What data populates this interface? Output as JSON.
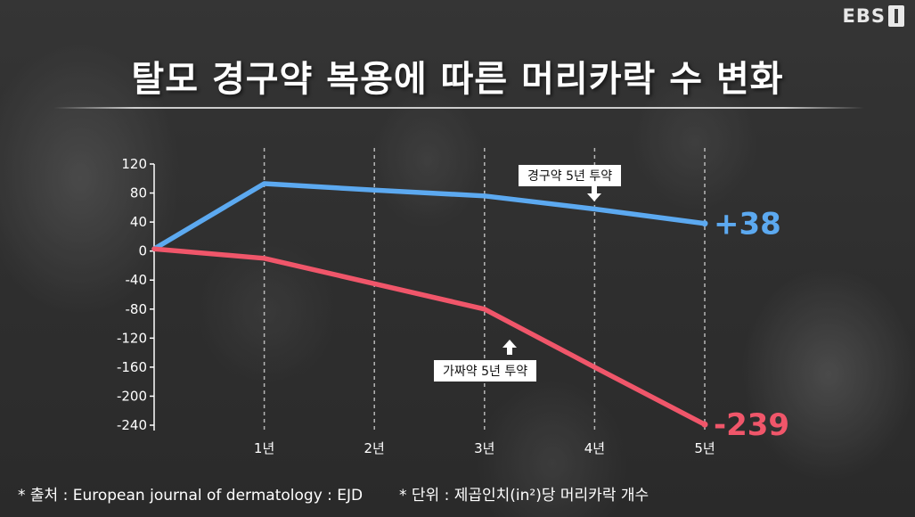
{
  "brand": {
    "logo_text": "EBS"
  },
  "title": "탈모 경구약 복용에 따른 머리카락 수 변화",
  "colors": {
    "oral": "#5ca9f0",
    "placebo": "#f0566a",
    "grid": "#d0d0d0",
    "axis": "#ffffff"
  },
  "callouts": {
    "oral": "경구약 5년 투약",
    "placebo": "가짜약 5년 투약"
  },
  "footnotes": {
    "source": "* 출처 : European journal of dermatology : EJD",
    "unit": "* 단위 : 제곱인치(in²)당 머리카락 개수"
  },
  "chart_data": {
    "type": "line",
    "title": "탈모 경구약 복용에 따른 머리카락 수 변화",
    "x": [
      0,
      1,
      2,
      3,
      4,
      5
    ],
    "x_tick_labels": [
      "1년",
      "2년",
      "3년",
      "4년",
      "5년"
    ],
    "ylim": [
      -240,
      120
    ],
    "y_ticks": [
      120,
      80,
      40,
      0,
      -40,
      -80,
      -120,
      -160,
      -200,
      -240
    ],
    "grid": {
      "vertical": true,
      "style": "dashed"
    },
    "series": [
      {
        "key": "oral",
        "values": [
          3,
          93,
          84,
          76,
          58,
          38
        ],
        "end_label": "+38"
      },
      {
        "key": "placebo",
        "values": [
          3,
          -10,
          -45,
          -80,
          -160,
          -239
        ],
        "end_label": "-239"
      }
    ]
  }
}
